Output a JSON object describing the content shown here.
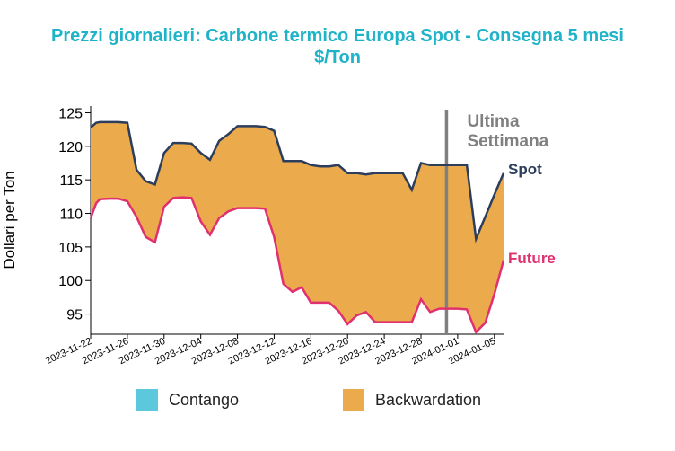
{
  "title_line1": "Prezzi giornalieri: Carbone termico Europa Spot - Consegna 5 mesi",
  "title_line2": "$/Ton",
  "colors": {
    "title": "#1fb3c9",
    "spot": "#2c3e5c",
    "future": "#e0306e",
    "backwardation": "#ebaa4b",
    "contango": "#5bc8dc",
    "marker": "#808080"
  },
  "legend": {
    "contango": "Contango",
    "backwardation": "Backwardation"
  },
  "chart_data": {
    "type": "area",
    "ylabel": "Dollari per Ton",
    "ylim": [
      92,
      126
    ],
    "yticks": [
      95,
      100,
      105,
      110,
      115,
      120,
      125
    ],
    "xticks": [
      "2023-11-22",
      "2023-11-26",
      "2023-11-30",
      "2023-12-04",
      "2023-12-08",
      "2023-12-12",
      "2023-12-16",
      "2023-12-20",
      "2023-12-24",
      "2023-12-28",
      "2024-01-01",
      "2024-01-05"
    ],
    "marker_label": [
      "Ultima",
      "Settimana"
    ],
    "series": [
      {
        "name": "Spot",
        "points": [
          [
            "2023-11-22",
            122.8
          ],
          [
            "2023-11-22.6",
            123.5
          ],
          [
            "2023-11-23",
            123.6
          ],
          [
            "2023-11-24",
            123.6
          ],
          [
            "2023-11-25",
            123.6
          ],
          [
            "2023-11-26",
            123.5
          ],
          [
            "2023-11-27",
            116.5
          ],
          [
            "2023-11-28",
            114.8
          ],
          [
            "2023-11-29",
            114.3
          ],
          [
            "2023-11-30",
            119.0
          ],
          [
            "2023-12-01",
            120.5
          ],
          [
            "2023-12-02",
            120.5
          ],
          [
            "2023-12-03",
            120.4
          ],
          [
            "2023-12-04",
            119.0
          ],
          [
            "2023-12-05",
            118.0
          ],
          [
            "2023-12-06",
            120.8
          ],
          [
            "2023-12-07",
            121.8
          ],
          [
            "2023-12-08",
            123.0
          ],
          [
            "2023-12-09",
            123.0
          ],
          [
            "2023-12-10",
            123.0
          ],
          [
            "2023-12-11",
            122.9
          ],
          [
            "2023-12-12",
            122.3
          ],
          [
            "2023-12-13",
            117.8
          ],
          [
            "2023-12-14",
            117.8
          ],
          [
            "2023-12-15",
            117.8
          ],
          [
            "2023-12-16",
            117.2
          ],
          [
            "2023-12-17",
            117.0
          ],
          [
            "2023-12-18",
            117.0
          ],
          [
            "2023-12-19",
            117.2
          ],
          [
            "2023-12-20",
            116.0
          ],
          [
            "2023-12-21",
            116.0
          ],
          [
            "2023-12-22",
            115.8
          ],
          [
            "2023-12-23",
            116.0
          ],
          [
            "2023-12-24",
            116.0
          ],
          [
            "2023-12-25",
            116.0
          ],
          [
            "2023-12-26",
            116.0
          ],
          [
            "2023-12-27",
            113.5
          ],
          [
            "2023-12-28",
            117.5
          ],
          [
            "2023-12-29",
            117.2
          ],
          [
            "2023-12-30",
            117.2
          ],
          [
            "2023-12-31",
            117.2
          ],
          [
            "2024-01-01",
            117.2
          ],
          [
            "2024-01-02",
            117.2
          ],
          [
            "2024-01-03",
            106.2
          ],
          [
            "2024-01-04",
            109.5
          ],
          [
            "2024-01-05",
            112.8
          ],
          [
            "2024-01-06",
            116.0
          ]
        ]
      },
      {
        "name": "Future",
        "points": [
          [
            "2023-11-22",
            109.3
          ],
          [
            "2023-11-22.6",
            111.5
          ],
          [
            "2023-11-23",
            112.1
          ],
          [
            "2023-11-24",
            112.2
          ],
          [
            "2023-11-25",
            112.2
          ],
          [
            "2023-11-26",
            111.8
          ],
          [
            "2023-11-27",
            109.5
          ],
          [
            "2023-11-28",
            106.5
          ],
          [
            "2023-11-29",
            105.7
          ],
          [
            "2023-11-30",
            111.0
          ],
          [
            "2023-12-01",
            112.3
          ],
          [
            "2023-12-02",
            112.4
          ],
          [
            "2023-12-03",
            112.3
          ],
          [
            "2023-12-04",
            108.8
          ],
          [
            "2023-12-05",
            106.8
          ],
          [
            "2023-12-06",
            109.3
          ],
          [
            "2023-12-07",
            110.3
          ],
          [
            "2023-12-08",
            110.8
          ],
          [
            "2023-12-09",
            110.8
          ],
          [
            "2023-12-10",
            110.8
          ],
          [
            "2023-12-11",
            110.7
          ],
          [
            "2023-12-12",
            106.5
          ],
          [
            "2023-12-13",
            99.5
          ],
          [
            "2023-12-14",
            98.3
          ],
          [
            "2023-12-15",
            99.0
          ],
          [
            "2023-12-16",
            96.7
          ],
          [
            "2023-12-17",
            96.7
          ],
          [
            "2023-12-18",
            96.7
          ],
          [
            "2023-12-19",
            95.5
          ],
          [
            "2023-12-20",
            93.5
          ],
          [
            "2023-12-21",
            94.8
          ],
          [
            "2023-12-22",
            95.3
          ],
          [
            "2023-12-23",
            93.8
          ],
          [
            "2023-12-24",
            93.8
          ],
          [
            "2023-12-25",
            93.8
          ],
          [
            "2023-12-26",
            93.8
          ],
          [
            "2023-12-27",
            93.8
          ],
          [
            "2023-12-28",
            97.2
          ],
          [
            "2023-12-29",
            95.3
          ],
          [
            "2023-12-30",
            95.8
          ],
          [
            "2023-12-31",
            95.8
          ],
          [
            "2024-01-01",
            95.8
          ],
          [
            "2024-01-02",
            95.7
          ],
          [
            "2024-01-03",
            92.3
          ],
          [
            "2024-01-04",
            93.7
          ],
          [
            "2024-01-05",
            98.0
          ],
          [
            "2024-01-06",
            103.0
          ]
        ]
      }
    ],
    "marker_date": "2023-12-30"
  }
}
